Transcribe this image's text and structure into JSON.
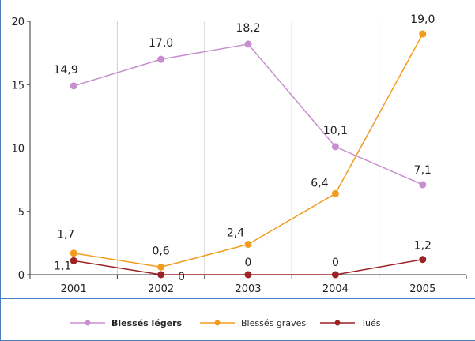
{
  "chart_data": {
    "type": "line",
    "title": "",
    "xlabel": "",
    "ylabel": "",
    "categories": [
      "2001",
      "2002",
      "2003",
      "2004",
      "2005"
    ],
    "ylim": [
      0,
      20
    ],
    "yticks": [
      "0",
      "5",
      "10",
      "15",
      "20"
    ],
    "grid": "vertical",
    "legend_position": "bottom",
    "series": [
      {
        "name": "Blessés légers",
        "color": "#c88fcf",
        "values": [
          14.9,
          17.0,
          18.2,
          10.1,
          7.1
        ],
        "labels": [
          "14,9",
          "17,0",
          "18,2",
          "10,1",
          "7,1"
        ]
      },
      {
        "name": "Blessés graves",
        "color": "#f29b1d",
        "values": [
          1.7,
          0.6,
          2.4,
          6.4,
          19.0
        ],
        "labels": [
          "1,7",
          "0,6",
          "2,4",
          "6,4",
          "19,0"
        ]
      },
      {
        "name": "Tués",
        "color": "#9b2225",
        "values": [
          1.1,
          0,
          0,
          0,
          1.2
        ],
        "labels": [
          "1,1",
          "0",
          "0",
          "0",
          "1,2"
        ]
      }
    ]
  }
}
